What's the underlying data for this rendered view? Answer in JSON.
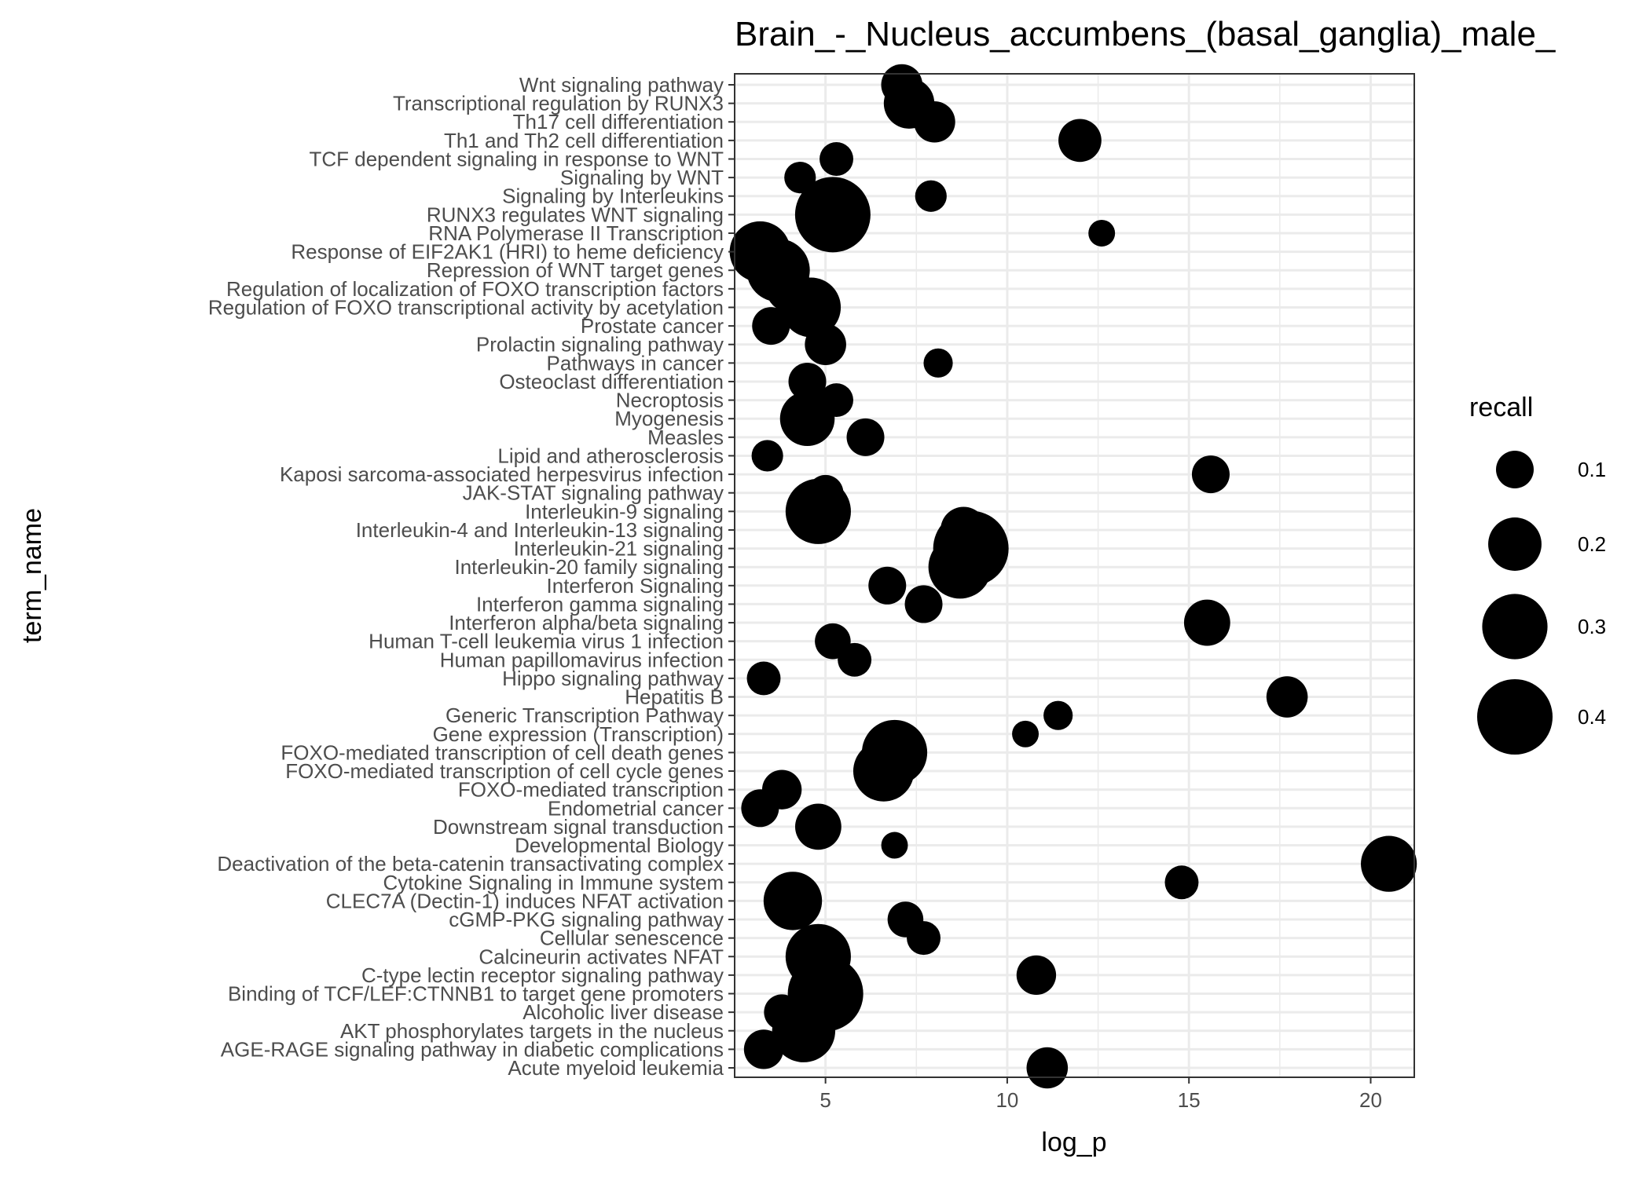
{
  "chart_data": {
    "type": "scatter",
    "title": "Brain_-_Nucleus_accumbens_(basal_ganglia)_male_",
    "xlabel": "log_p",
    "ylabel": "term_name",
    "xlim": [
      2.5,
      21.2
    ],
    "x_ticks": [
      5,
      10,
      15,
      20
    ],
    "grid": true,
    "size_variable": "recall",
    "legend": {
      "title": "recall",
      "position": "right",
      "entries": [
        {
          "label": "0.1",
          "value": 0.1
        },
        {
          "label": "0.2",
          "value": 0.2
        },
        {
          "label": "0.3",
          "value": 0.3
        },
        {
          "label": "0.4",
          "value": 0.4
        }
      ]
    },
    "categories": [
      "Wnt signaling pathway",
      "Transcriptional regulation by RUNX3",
      "Th17 cell differentiation",
      "Th1 and Th2 cell differentiation",
      "TCF dependent signaling in response to WNT",
      "Signaling by WNT",
      "Signaling by Interleukins",
      "RUNX3 regulates WNT signaling",
      "RNA Polymerase II Transcription",
      "Response of EIF2AK1 (HRI) to heme deficiency",
      "Repression of WNT target genes",
      "Regulation of localization of FOXO transcription factors",
      "Regulation of FOXO transcriptional activity by acetylation",
      "Prostate cancer",
      "Prolactin signaling pathway",
      "Pathways in cancer",
      "Osteoclast differentiation",
      "Necroptosis",
      "Myogenesis",
      "Measles",
      "Lipid and atherosclerosis",
      "Kaposi sarcoma-associated herpesvirus infection",
      "JAK-STAT signaling pathway",
      "Interleukin-9 signaling",
      "Interleukin-4 and Interleukin-13 signaling",
      "Interleukin-21 signaling",
      "Interleukin-20 family signaling",
      "Interferon Signaling",
      "Interferon gamma signaling",
      "Interferon alpha/beta signaling",
      "Human T-cell leukemia virus 1 infection",
      "Human papillomavirus infection",
      "Hippo signaling pathway",
      "Hepatitis B",
      "Generic Transcription Pathway",
      "Gene expression (Transcription)",
      "FOXO-mediated transcription of cell death genes",
      "FOXO-mediated transcription of cell cycle genes",
      "FOXO-mediated transcription",
      "Endometrial cancer",
      "Downstream signal transduction",
      "Developmental Biology",
      "Deactivation of the beta-catenin transactivating complex",
      "Cytokine Signaling in Immune system",
      "CLEC7A (Dectin-1) induces NFAT activation",
      "cGMP-PKG signaling pathway",
      "Cellular senescence",
      "Calcineurin activates NFAT",
      "C-type lectin receptor signaling pathway",
      "Binding of TCF/LEF:CTNNB1 to target gene promoters",
      "Alcoholic liver disease",
      "AKT phosphorylates targets in the nucleus",
      "AGE-RAGE signaling pathway in diabetic complications",
      "Acute myeloid leukemia"
    ],
    "points": [
      {
        "term": "Wnt signaling pathway",
        "log_p": 7.1,
        "recall": 0.12
      },
      {
        "term": "Transcriptional regulation by RUNX3",
        "log_p": 7.3,
        "recall": 0.18
      },
      {
        "term": "Th17 cell differentiation",
        "log_p": 8.0,
        "recall": 0.12
      },
      {
        "term": "Th1 and Th2 cell differentiation",
        "log_p": 12.0,
        "recall": 0.13
      },
      {
        "term": "TCF dependent signaling in response to WNT",
        "log_p": 5.3,
        "recall": 0.08
      },
      {
        "term": "Signaling by WNT",
        "log_p": 4.3,
        "recall": 0.07
      },
      {
        "term": "Signaling by Interleukins",
        "log_p": 7.9,
        "recall": 0.07
      },
      {
        "term": "RUNX3 regulates WNT signaling",
        "log_p": 5.2,
        "recall": 0.4
      },
      {
        "term": "RNA Polymerase II Transcription",
        "log_p": 12.6,
        "recall": 0.05
      },
      {
        "term": "Response of EIF2AK1 (HRI) to heme deficiency",
        "log_p": 3.2,
        "recall": 0.26
      },
      {
        "term": "Repression of WNT target genes",
        "log_p": 3.7,
        "recall": 0.28
      },
      {
        "term": "Regulation of localization of FOXO transcription factors",
        "log_p": 4.0,
        "recall": 0.15
      },
      {
        "term": "Regulation of FOXO transcriptional activity by acetylation",
        "log_p": 4.6,
        "recall": 0.25
      },
      {
        "term": "Prostate cancer",
        "log_p": 3.5,
        "recall": 0.1
      },
      {
        "term": "Prolactin signaling pathway",
        "log_p": 5.0,
        "recall": 0.12
      },
      {
        "term": "Pathways in cancer",
        "log_p": 8.1,
        "recall": 0.06
      },
      {
        "term": "Osteoclast differentiation",
        "log_p": 4.5,
        "recall": 0.1
      },
      {
        "term": "Necroptosis",
        "log_p": 5.3,
        "recall": 0.08
      },
      {
        "term": "Myogenesis",
        "log_p": 4.5,
        "recall": 0.21
      },
      {
        "term": "Measles",
        "log_p": 6.1,
        "recall": 0.1
      },
      {
        "term": "Lipid and atherosclerosis",
        "log_p": 3.4,
        "recall": 0.07
      },
      {
        "term": "Kaposi sarcoma-associated herpesvirus infection",
        "log_p": 15.6,
        "recall": 0.1
      },
      {
        "term": "JAK-STAT signaling pathway",
        "log_p": 5.0,
        "recall": 0.09
      },
      {
        "term": "Interleukin-9 signaling",
        "log_p": 4.8,
        "recall": 0.3
      },
      {
        "term": "Interleukin-4 and Interleukin-13 signaling",
        "log_p": 8.8,
        "recall": 0.15
      },
      {
        "term": "Interleukin-21 signaling",
        "log_p": 9.0,
        "recall": 0.4
      },
      {
        "term": "Interleukin-20 family signaling",
        "log_p": 8.7,
        "recall": 0.28
      },
      {
        "term": "Interferon Signaling",
        "log_p": 6.7,
        "recall": 0.1
      },
      {
        "term": "Interferon gamma signaling",
        "log_p": 7.7,
        "recall": 0.1
      },
      {
        "term": "Interferon alpha/beta signaling",
        "log_p": 15.5,
        "recall": 0.15
      },
      {
        "term": "Human T-cell leukemia virus 1 infection",
        "log_p": 5.2,
        "recall": 0.09
      },
      {
        "term": "Human papillomavirus infection",
        "log_p": 5.8,
        "recall": 0.08
      },
      {
        "term": "Hippo signaling pathway",
        "log_p": 3.3,
        "recall": 0.08
      },
      {
        "term": "Hepatitis B",
        "log_p": 17.7,
        "recall": 0.12
      },
      {
        "term": "Generic Transcription Pathway",
        "log_p": 11.4,
        "recall": 0.06
      },
      {
        "term": "Gene expression (Transcription)",
        "log_p": 10.5,
        "recall": 0.05
      },
      {
        "term": "FOXO-mediated transcription of cell death genes",
        "log_p": 6.9,
        "recall": 0.3
      },
      {
        "term": "FOXO-mediated transcription of cell cycle genes",
        "log_p": 6.6,
        "recall": 0.26
      },
      {
        "term": "FOXO-mediated transcription",
        "log_p": 3.8,
        "recall": 0.11
      },
      {
        "term": "Endometrial cancer",
        "log_p": 3.2,
        "recall": 0.1
      },
      {
        "term": "Downstream signal transduction",
        "log_p": 4.8,
        "recall": 0.15
      },
      {
        "term": "Developmental Biology",
        "log_p": 6.9,
        "recall": 0.05
      },
      {
        "term": "Deactivation of the beta-catenin transactivating complex",
        "log_p": 20.5,
        "recall": 0.22
      },
      {
        "term": "Cytokine Signaling in Immune system",
        "log_p": 14.8,
        "recall": 0.08
      },
      {
        "term": "CLEC7A (Dectin-1) induces NFAT activation",
        "log_p": 4.1,
        "recall": 0.24
      },
      {
        "term": "cGMP-PKG signaling pathway",
        "log_p": 7.2,
        "recall": 0.09
      },
      {
        "term": "Cellular senescence",
        "log_p": 7.7,
        "recall": 0.08
      },
      {
        "term": "Calcineurin activates NFAT",
        "log_p": 4.8,
        "recall": 0.3
      },
      {
        "term": "C-type lectin receptor signaling pathway",
        "log_p": 10.8,
        "recall": 0.11
      },
      {
        "term": "Binding of TCF/LEF:CTNNB1 to target gene promoters",
        "log_p": 5.0,
        "recall": 0.4
      },
      {
        "term": "Alcoholic liver disease",
        "log_p": 3.8,
        "recall": 0.09
      },
      {
        "term": "AKT phosphorylates targets in the nucleus",
        "log_p": 4.4,
        "recall": 0.28
      },
      {
        "term": "AGE-RAGE signaling pathway in diabetic complications",
        "log_p": 3.3,
        "recall": 0.11
      },
      {
        "term": "Acute myeloid leukemia",
        "log_p": 11.1,
        "recall": 0.12
      }
    ]
  }
}
